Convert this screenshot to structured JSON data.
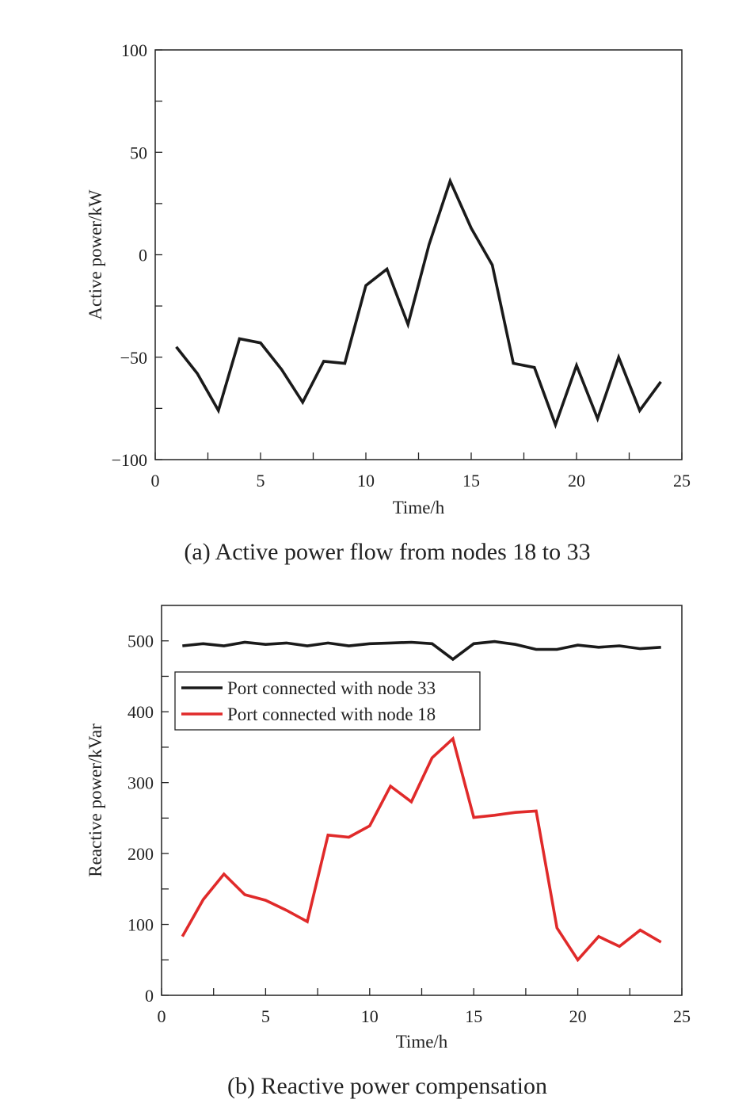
{
  "chart_data": [
    {
      "type": "line",
      "caption": "(a) Active power flow from nodes 18 to 33",
      "xlabel": "Time/h",
      "ylabel": "Active power/kW",
      "xlim": [
        0,
        25
      ],
      "ylim": [
        -100,
        100
      ],
      "xticks": [
        0,
        5,
        10,
        15,
        20,
        25
      ],
      "yticks": [
        -100,
        -50,
        0,
        50,
        100
      ],
      "xtick_labels": [
        "0",
        "5",
        "10",
        "15",
        "20",
        "25"
      ],
      "ytick_labels": [
        "−100",
        "−50",
        "0",
        "50",
        "100"
      ],
      "legend": false,
      "series": [
        {
          "color": "#1a1a1a",
          "x": [
            1,
            2,
            3,
            4,
            5,
            6,
            7,
            8,
            9,
            10,
            11,
            12,
            13,
            14,
            15,
            16,
            17,
            18,
            19,
            20,
            21,
            22,
            23,
            24
          ],
          "y": [
            -45,
            -58,
            -76,
            -41,
            -43,
            -56,
            -72,
            -52,
            -53,
            -15,
            -7,
            -34,
            5,
            36,
            13,
            -5,
            -53,
            -55,
            -83,
            -54,
            -80,
            -50,
            -76,
            -62
          ]
        }
      ]
    },
    {
      "type": "line",
      "caption": "(b) Reactive power compensation",
      "xlabel": "Time/h",
      "ylabel": "Reactive power/kVar",
      "xlim": [
        0,
        25
      ],
      "ylim": [
        0,
        550
      ],
      "xticks": [
        0,
        5,
        10,
        15,
        20,
        25
      ],
      "yticks": [
        0,
        100,
        200,
        300,
        400,
        500
      ],
      "xtick_labels": [
        "0",
        "5",
        "10",
        "15",
        "20",
        "25"
      ],
      "ytick_labels": [
        "0",
        "100",
        "200",
        "300",
        "400",
        "500"
      ],
      "legend": true,
      "legend_position": "upper-left",
      "series": [
        {
          "name": "Port connected with node 33",
          "color": "#1a1a1a",
          "x": [
            1,
            2,
            3,
            4,
            5,
            6,
            7,
            8,
            9,
            10,
            11,
            12,
            13,
            14,
            15,
            16,
            17,
            18,
            19,
            20,
            21,
            22,
            23,
            24
          ],
          "y": [
            493,
            496,
            493,
            498,
            495,
            497,
            493,
            497,
            493,
            496,
            497,
            498,
            496,
            474,
            496,
            499,
            495,
            488,
            488,
            494,
            491,
            493,
            489,
            491
          ]
        },
        {
          "name": "Port connected with node 18",
          "color": "#e02a2a",
          "x": [
            1,
            2,
            3,
            4,
            5,
            6,
            7,
            8,
            9,
            10,
            11,
            12,
            13,
            14,
            15,
            16,
            17,
            18,
            19,
            20,
            21,
            22,
            23,
            24
          ],
          "y": [
            83,
            135,
            171,
            142,
            134,
            120,
            104,
            226,
            223,
            239,
            295,
            273,
            335,
            362,
            251,
            254,
            258,
            260,
            95,
            50,
            83,
            69,
            92,
            75
          ]
        }
      ]
    }
  ]
}
